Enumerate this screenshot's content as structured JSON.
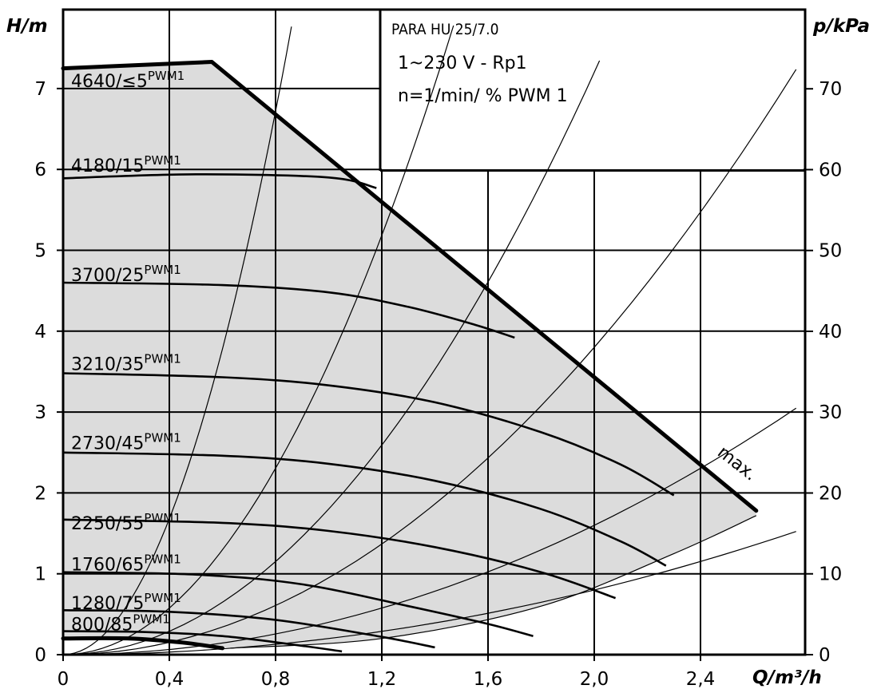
{
  "chart_data": {
    "type": "line",
    "x_label": "Q/m³/h",
    "y_label": "H/m",
    "y2_label": "p/kPa",
    "xlim": [
      0,
      2.76
    ],
    "ylim": [
      0,
      7.85
    ],
    "y2lim": [
      0,
      78.5
    ],
    "x_ticks": [
      {
        "v": 0,
        "t": "0"
      },
      {
        "v": 0.4,
        "t": "0,4"
      },
      {
        "v": 0.8,
        "t": "0,8"
      },
      {
        "v": 1.2,
        "t": "1,2"
      },
      {
        "v": 1.6,
        "t": "1,6"
      },
      {
        "v": 2.0,
        "t": "2,0"
      },
      {
        "v": 2.4,
        "t": "2,4"
      }
    ],
    "y_ticks": [
      "0",
      "1",
      "2",
      "3",
      "4",
      "5",
      "6",
      "7"
    ],
    "y2_ticks": [
      "0",
      "10",
      "20",
      "30",
      "40",
      "50",
      "60",
      "70"
    ],
    "grid": true,
    "info_box": {
      "title": "PARA HU 25/7.0",
      "line1": "1~230 V - Rp1",
      "line2": "n=1/min/ % PWM 1"
    },
    "max_label": "max.",
    "operating_area_color": "#dcdcdc",
    "curve_color": "#000000",
    "max_curve": [
      [
        0,
        7.25
      ],
      [
        0.56,
        7.33
      ],
      [
        2.61,
        1.78
      ]
    ],
    "series": [
      {
        "name": "4640/≤5",
        "suffix": "PWM1",
        "label_h": 7.1,
        "points": []
      },
      {
        "name": "4180/15",
        "suffix": "PWM1",
        "label_h": 6.05,
        "points": [
          [
            0,
            5.89
          ],
          [
            0.5,
            5.94
          ],
          [
            1.0,
            5.9
          ],
          [
            1.18,
            5.77
          ]
        ]
      },
      {
        "name": "3700/25",
        "suffix": "PWM1",
        "label_h": 4.7,
        "points": [
          [
            0,
            4.6
          ],
          [
            0.6,
            4.57
          ],
          [
            1.0,
            4.48
          ],
          [
            1.3,
            4.3
          ],
          [
            1.55,
            4.08
          ],
          [
            1.7,
            3.92
          ]
        ]
      },
      {
        "name": "3210/35",
        "suffix": "PWM1",
        "label_h": 3.6,
        "points": [
          [
            0,
            3.48
          ],
          [
            0.6,
            3.43
          ],
          [
            1.0,
            3.33
          ],
          [
            1.4,
            3.12
          ],
          [
            1.8,
            2.75
          ],
          [
            2.1,
            2.35
          ],
          [
            2.3,
            1.97
          ]
        ]
      },
      {
        "name": "2730/45",
        "suffix": "PWM1",
        "label_h": 2.62,
        "points": [
          [
            0,
            2.5
          ],
          [
            0.6,
            2.46
          ],
          [
            1.0,
            2.36
          ],
          [
            1.4,
            2.15
          ],
          [
            1.8,
            1.8
          ],
          [
            2.1,
            1.4
          ],
          [
            2.27,
            1.1
          ]
        ]
      },
      {
        "name": "2250/55",
        "suffix": "PWM1",
        "label_h": 1.63,
        "points": [
          [
            0,
            1.67
          ],
          [
            0.6,
            1.63
          ],
          [
            1.0,
            1.53
          ],
          [
            1.4,
            1.33
          ],
          [
            1.8,
            1.02
          ],
          [
            2.08,
            0.7
          ]
        ]
      },
      {
        "name": "1760/65",
        "suffix": "PWM1",
        "label_h": 1.12,
        "points": [
          [
            0,
            1.02
          ],
          [
            0.5,
            0.99
          ],
          [
            0.9,
            0.87
          ],
          [
            1.3,
            0.6
          ],
          [
            1.6,
            0.38
          ],
          [
            1.77,
            0.23
          ]
        ]
      },
      {
        "name": "1280/75",
        "suffix": "PWM1",
        "label_h": 0.64,
        "points": [
          [
            0,
            0.55
          ],
          [
            0.4,
            0.53
          ],
          [
            0.8,
            0.43
          ],
          [
            1.2,
            0.22
          ],
          [
            1.4,
            0.09
          ]
        ]
      },
      {
        "name": "800/85",
        "suffix": "PWM1",
        "label_h": 0.38,
        "points": [
          [
            0,
            0.29
          ],
          [
            0.3,
            0.28
          ],
          [
            0.6,
            0.23
          ],
          [
            0.9,
            0.11
          ],
          [
            1.05,
            0.04
          ]
        ]
      }
    ],
    "min_curve": [
      [
        0,
        0.2
      ],
      [
        0.25,
        0.2
      ],
      [
        0.45,
        0.15
      ],
      [
        0.6,
        0.08
      ]
    ],
    "bottom_boundary": [
      [
        0.63,
        0.08
      ],
      [
        1.2,
        0.2
      ],
      [
        1.8,
        0.6
      ],
      [
        2.3,
        1.25
      ],
      [
        2.61,
        1.72
      ]
    ],
    "system_curves": [
      {
        "a": 10.5,
        "x_end": 0.86
      },
      {
        "a": 3.6,
        "x_end": 1.47
      },
      {
        "a": 1.8,
        "x_end": 2.02
      },
      {
        "a": 0.95,
        "x_end": 2.76
      },
      {
        "a": 0.4,
        "x_end": 2.76
      },
      {
        "a": 0.2,
        "x_end": 2.76
      }
    ]
  }
}
